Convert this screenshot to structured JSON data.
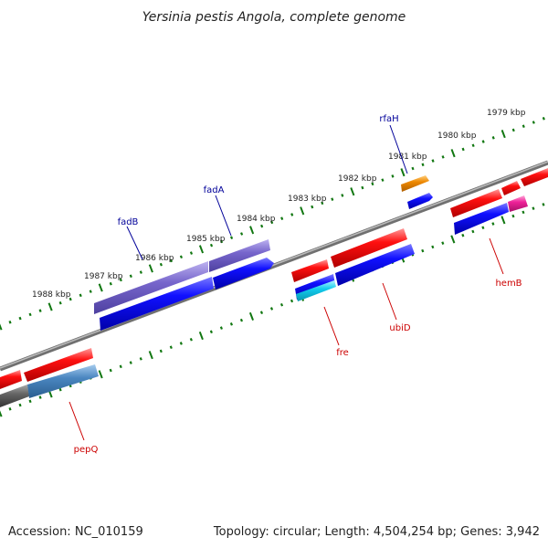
{
  "title": "Yersinia pestis Angola, complete genome",
  "footer": {
    "accession": "Accession: NC_010159",
    "summary": "Topology: circular; Length: 4,504,254 bp; Genes: 3,942"
  },
  "kbp_labels": [
    "1988 kbp",
    "1987 kbp",
    "1986 kbp",
    "1985 kbp",
    "1984 kbp",
    "1983 kbp",
    "1982 kbp",
    "1981 kbp",
    "1980 kbp",
    "1979 kbp"
  ],
  "genes_above": [
    {
      "label": "fadB",
      "color": "#000099"
    },
    {
      "label": "fadA",
      "color": "#000099"
    },
    {
      "label": "rfaH",
      "color": "#000099"
    }
  ],
  "genes_below": [
    {
      "label": "pepQ",
      "color": "#cc0000"
    },
    {
      "label": "fre",
      "color": "#cc0000"
    },
    {
      "label": "ubiD",
      "color": "#cc0000"
    },
    {
      "label": "hemB",
      "color": "#cc0000"
    }
  ],
  "colors": {
    "forward": "#ee0000",
    "reverse": "#0000ee",
    "fad": "#7766cc",
    "rfaH": "#ee8800",
    "pepQ": "#4a86c0",
    "fre": "#11ccee",
    "hemB": "#ee2299",
    "backbone": "#888888",
    "tick": "#117711"
  }
}
